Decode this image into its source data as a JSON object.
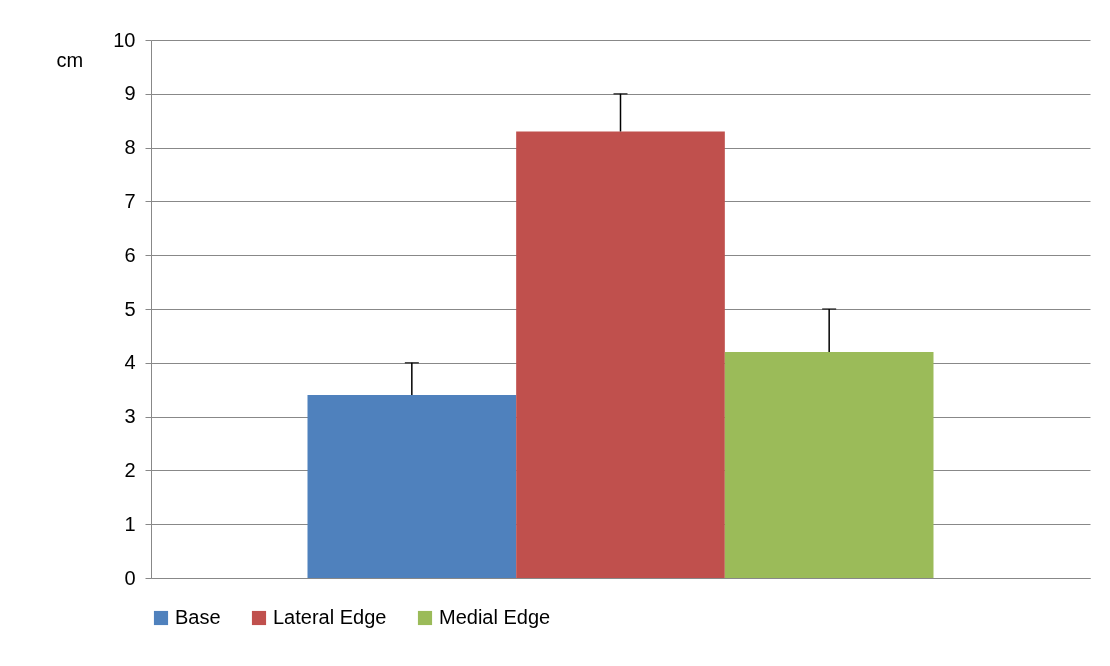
{
  "chart_data": {
    "type": "bar",
    "ylabel": "cm",
    "categories": [
      null
    ],
    "series": [
      {
        "name": "Base",
        "color": "#4f81bd",
        "values": [
          3.4
        ],
        "errors": [
          [
            3.4,
            4.0
          ]
        ]
      },
      {
        "name": "Lateral Edge",
        "color": "#c0504d",
        "values": [
          8.3
        ],
        "errors": [
          [
            8.3,
            9.0
          ]
        ]
      },
      {
        "name": "Medial Edge",
        "color": "#9bbb59",
        "values": [
          4.2
        ],
        "errors": [
          [
            4.2,
            5.0
          ]
        ]
      }
    ],
    "ylim": [
      0,
      10
    ],
    "yticks": [
      0,
      1,
      2,
      3,
      4,
      5,
      6,
      7,
      8,
      9,
      10
    ],
    "grid": "y",
    "legend": "bottom"
  }
}
